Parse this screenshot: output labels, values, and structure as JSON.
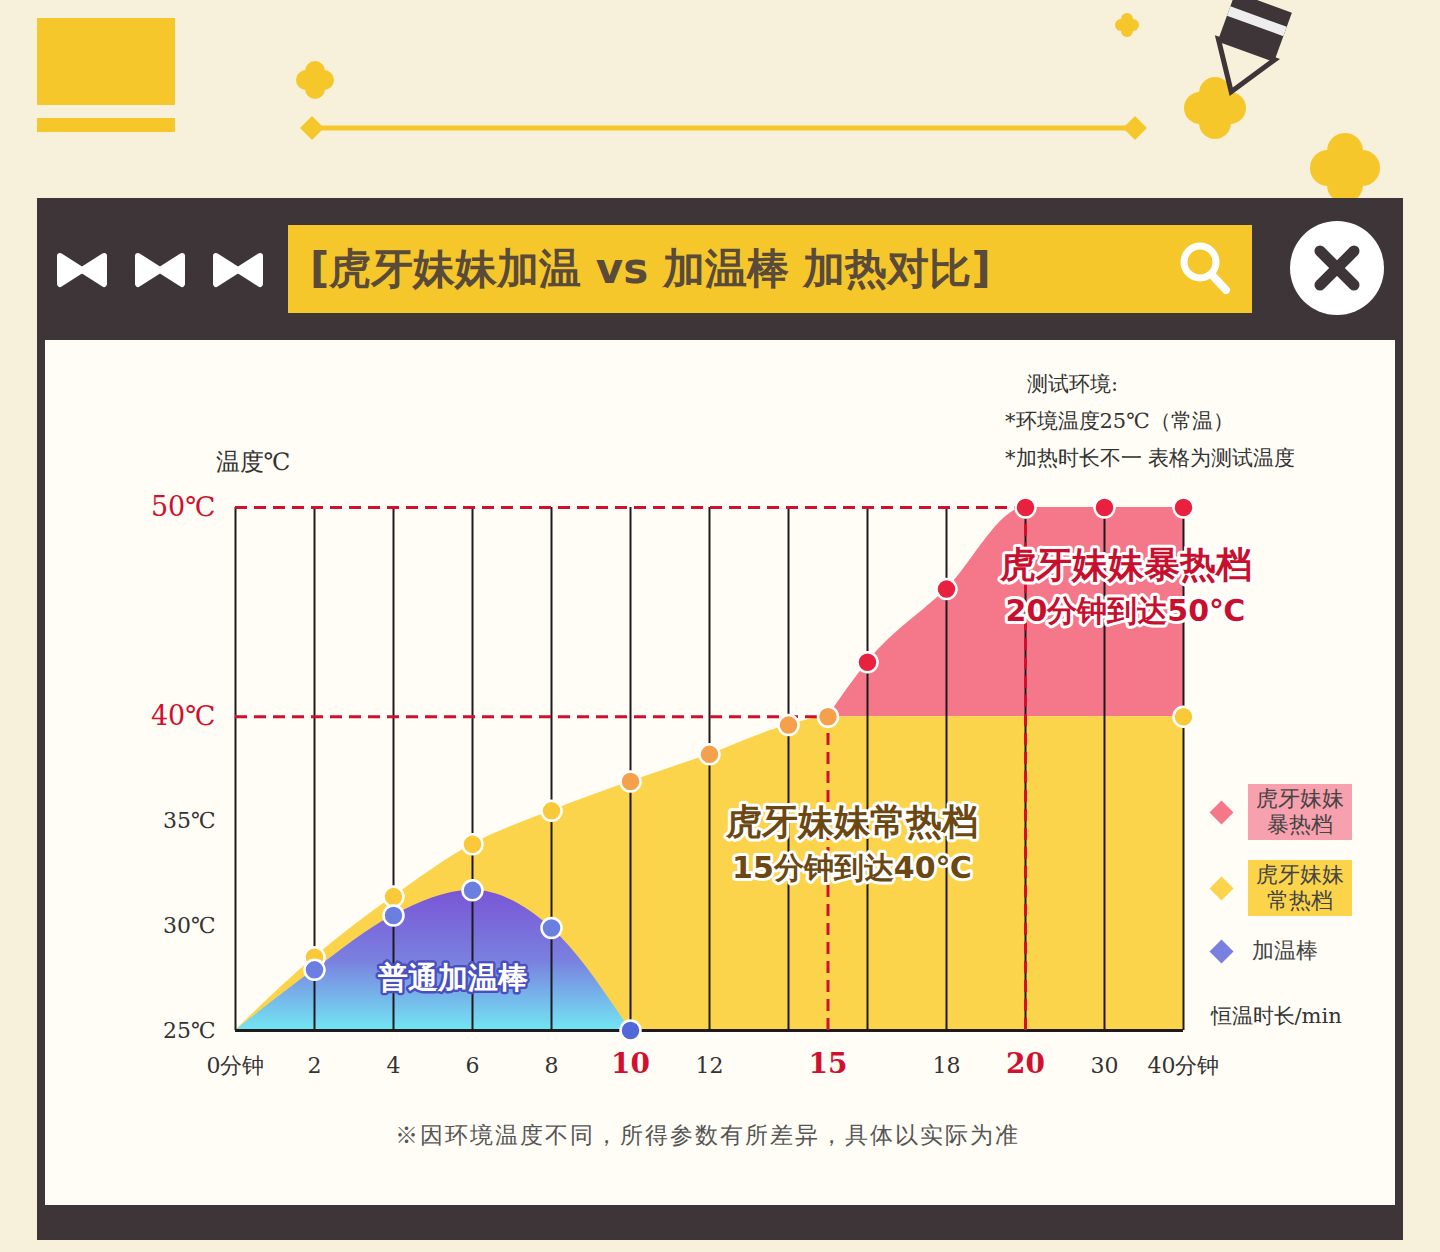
{
  "chart_data": {
    "type": "area",
    "title": "[虎牙妹妹加温 vs 加温棒 加热对比]",
    "y_label": "温度℃",
    "x_label": "恒温时长/min",
    "notes": [
      "测试环境:",
      "*环境温度25℃（常温）",
      "*加热时长不一 表格为测试温度"
    ],
    "caption": "※因环境温度不同，所得参数有所差异，具体以实际为准",
    "xlim": [
      0,
      40
    ],
    "ylim": [
      25,
      50
    ],
    "xticks": [
      {
        "value": 0,
        "label": "0分钟"
      },
      2,
      4,
      6,
      8,
      10,
      12,
      15,
      18,
      20,
      30,
      {
        "value": 40,
        "label": "40分钟"
      }
    ],
    "yticks": [
      {
        "value": 25,
        "label": "25℃"
      },
      {
        "value": 30,
        "label": "30℃"
      },
      {
        "value": 35,
        "label": "35℃"
      },
      {
        "value": 40,
        "label": "40℃"
      },
      {
        "value": 50,
        "label": "50℃"
      }
    ],
    "x_grid": [
      0,
      2,
      4,
      6,
      8,
      10,
      12,
      14,
      16,
      18,
      20,
      30,
      40
    ],
    "grid": true,
    "marker": "circle",
    "legend": "right",
    "series": [
      {
        "name": "虎牙妹妹暴热档",
        "color": "#f5778a",
        "x": [
          16,
          18,
          20,
          30,
          40
        ],
        "values": [
          42.6,
          46.1,
          50,
          50,
          50
        ],
        "colors": [
          "#e8213f",
          "#e8213f",
          "#e8213f",
          "#e8213f",
          "#e8213f"
        ]
      },
      {
        "name": "虎牙妹妹常热档",
        "color": "#fcd44c",
        "x": [
          0,
          2,
          4,
          6,
          8,
          10,
          12,
          14,
          15,
          40
        ],
        "values": [
          25,
          28.5,
          31.4,
          33.9,
          35.5,
          36.9,
          38.2,
          39.6,
          40,
          40
        ],
        "colors": [
          null,
          "#f9c93a",
          "#f9c93a",
          "#f9c93a",
          "#f9c93a",
          "#f5a04a",
          "#f5a04a",
          "#f5a04a",
          "#f5a04a",
          "#f9c93a"
        ]
      },
      {
        "name": "加温棒",
        "color": "#7a80df",
        "label": "普通加温棒",
        "x": [
          0,
          2,
          4,
          6,
          8,
          10
        ],
        "values": [
          25,
          27.9,
          30.5,
          31.7,
          29.9,
          25
        ],
        "colors": [
          null,
          "#6b7fe0",
          "#6b7fe0",
          "#6b7fe0",
          "#6b7fe0",
          "#5068d8"
        ]
      }
    ],
    "annotations": [
      {
        "x": 15,
        "y": 40,
        "text": [
          "虎牙妹妹常热档",
          "15分钟到达40℃"
        ]
      },
      {
        "x": 20,
        "y": 50,
        "text": [
          "虎牙妹妹暴热档",
          "20分钟到达50℃"
        ]
      }
    ]
  }
}
